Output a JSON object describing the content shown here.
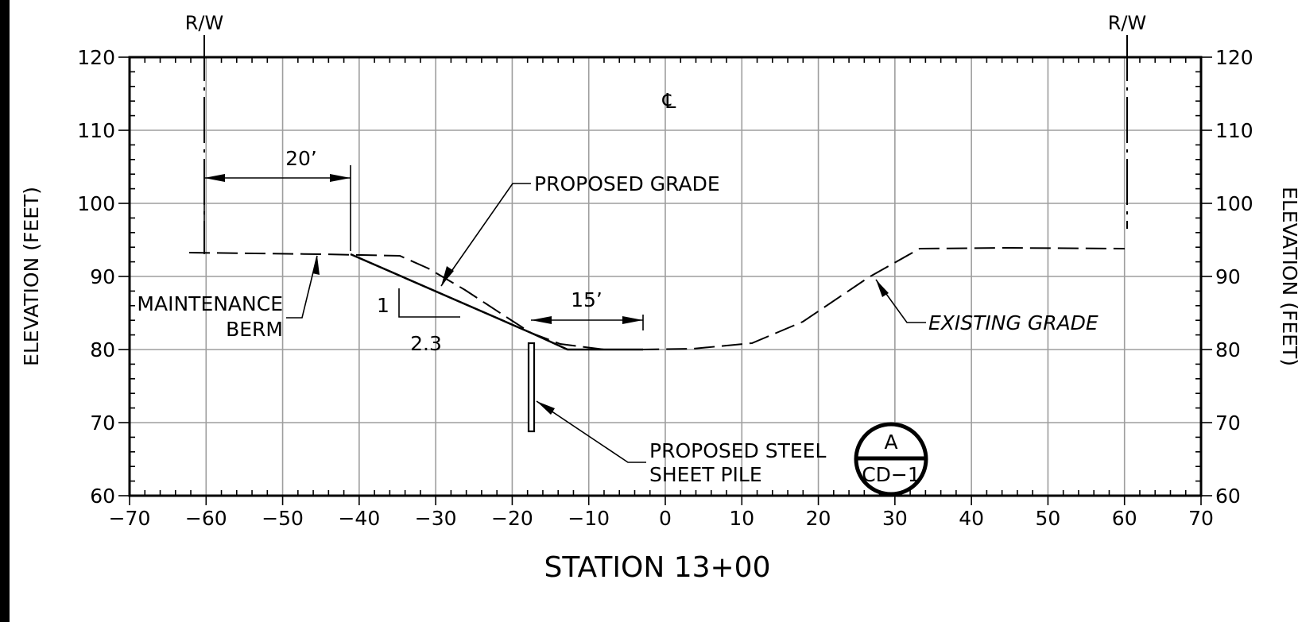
{
  "title": "STATION 13+00",
  "axes": {
    "left_label": "ELEVATION (FEET)",
    "right_label": "ELEVATION (FEET)",
    "x_ticks": [
      "−70",
      "−60",
      "−50",
      "−40",
      "−30",
      "−20",
      "−10",
      "0",
      "10",
      "20",
      "30",
      "40",
      "50",
      "60",
      "70"
    ],
    "y_ticks": [
      "120",
      "110",
      "100",
      "90",
      "80",
      "70",
      "60"
    ]
  },
  "labels": {
    "rw_left": "R/W",
    "rw_right": "R/W",
    "centerline": "℄",
    "dim_berm": "20’",
    "dim_pile": "15’",
    "slope_rise": "1",
    "slope_run": "2.3",
    "proposed_grade": "PROPOSED GRADE",
    "existing_grade": "EXISTING GRADE",
    "berm_1": "MAINTENANCE",
    "berm_2": "BERM",
    "pile_1": "PROPOSED STEEL",
    "pile_2": "SHEET PILE",
    "section_letter": "A",
    "section_sheet": "CD−1"
  },
  "chart_data": {
    "type": "line",
    "title": "STATION 13+00",
    "xlabel": "STATION 13+00",
    "ylabel": "ELEVATION (FEET)",
    "xlim": [
      -70,
      70
    ],
    "ylim": [
      60,
      120
    ],
    "grid": true,
    "series": [
      {
        "name": "EXISTING GRADE",
        "style": "dashed",
        "points": [
          [
            -62,
            93.3
          ],
          [
            -44,
            93
          ],
          [
            -33,
            92.8
          ],
          [
            -29,
            91
          ],
          [
            -24,
            88
          ],
          [
            -18,
            84
          ],
          [
            -15,
            82
          ],
          [
            -11,
            80.5
          ],
          [
            -5,
            80
          ],
          [
            0,
            80
          ],
          [
            7,
            80.2
          ],
          [
            15,
            81
          ],
          [
            22,
            84
          ],
          [
            31,
            90
          ],
          [
            38,
            93.9
          ],
          [
            50,
            94
          ],
          [
            66,
            94
          ]
        ]
      },
      {
        "name": "PROPOSED GRADE",
        "style": "solid",
        "points": [
          [
            -40,
            93
          ],
          [
            -15,
            82.2
          ],
          [
            -10,
            80
          ],
          [
            0,
            80
          ]
        ]
      },
      {
        "name": "PROPOSED STEEL SHEET PILE",
        "style": "solid",
        "points": [
          [
            -15,
            81
          ],
          [
            -15,
            69
          ]
        ]
      }
    ],
    "annotations": [
      {
        "text": "R/W",
        "x": -60
      },
      {
        "text": "R/W",
        "x": 60
      },
      {
        "text": "20’",
        "x_from": -60,
        "x_to": -40
      },
      {
        "text": "15’",
        "x_from": -15,
        "x_to": 0
      },
      {
        "text": "1",
        "slope": "1:2.3"
      },
      {
        "text": "2.3",
        "slope": "1:2.3"
      },
      {
        "text": "MAINTENANCE BERM",
        "x": -44,
        "y": 93
      },
      {
        "text": "A",
        "ref": "CD−1"
      }
    ]
  }
}
